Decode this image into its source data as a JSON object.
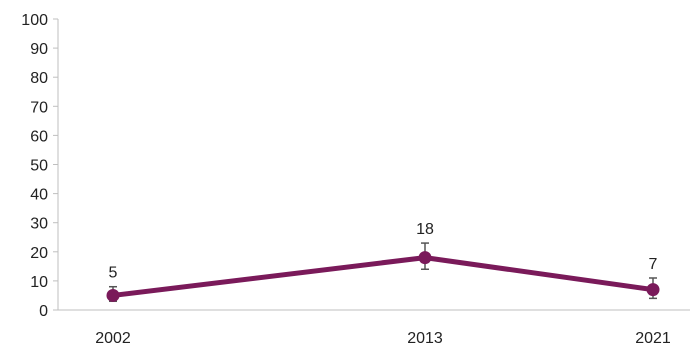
{
  "chart_data": {
    "type": "line",
    "title": "",
    "xlabel": "",
    "ylabel": "",
    "categories": [
      "2002",
      "2013",
      "2021"
    ],
    "x": [
      2002,
      2013,
      2021
    ],
    "ylim": [
      0,
      100
    ],
    "yticks": [
      0,
      10,
      20,
      30,
      40,
      50,
      60,
      70,
      80,
      90,
      100
    ],
    "grid": false,
    "legend": "none",
    "series": [
      {
        "values": [
          5,
          18,
          7
        ],
        "error_low": [
          3,
          14,
          4
        ],
        "error_high": [
          8,
          23,
          11
        ],
        "data_labels": [
          "5",
          "18",
          "7"
        ],
        "color": "#7a1a5a"
      }
    ],
    "colors": {
      "axis": "#bfbfbf",
      "error_bar": "#555555",
      "text": "#222222"
    }
  }
}
